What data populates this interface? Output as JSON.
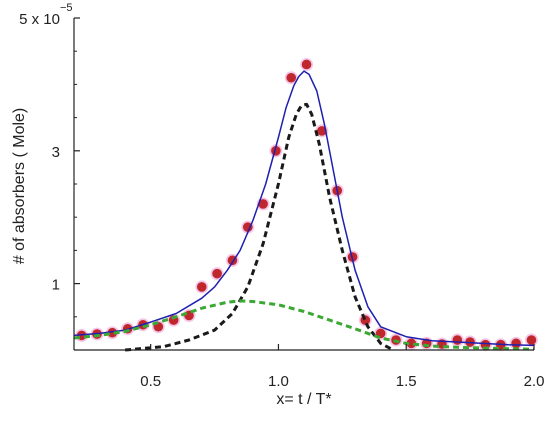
{
  "chart_data": {
    "type": "scatter",
    "xlabel": "x= t / T*",
    "ylabel": "# of absorbers ( Mole)",
    "xlim": [
      0.2,
      2.0
    ],
    "ylim": [
      0,
      5
    ],
    "x_ticks": [
      0.5,
      1.0,
      1.5,
      2.0
    ],
    "x_tick_labels": [
      "0.5",
      "1.0",
      "1.5",
      "2.0"
    ],
    "y_ticks": [
      1,
      3,
      5
    ],
    "y_tick_labels": [
      "1",
      "3",
      "5 x 10"
    ],
    "y_exponent": "−5",
    "grid": false,
    "legend": "none",
    "series": [
      {
        "kind": "scatter",
        "color": "#c0272d",
        "halo": "#f0b3e0",
        "x": [
          0.23,
          0.29,
          0.35,
          0.41,
          0.47,
          0.53,
          0.59,
          0.65,
          0.7,
          0.76,
          0.82,
          0.88,
          0.94,
          0.99,
          1.05,
          1.11,
          1.17,
          1.23,
          1.29,
          1.34,
          1.4,
          1.46,
          1.52,
          1.58,
          1.64,
          1.7,
          1.75,
          1.81,
          1.87,
          1.93,
          1.99
        ],
        "y": [
          0.22,
          0.24,
          0.26,
          0.32,
          0.38,
          0.35,
          0.45,
          0.52,
          0.95,
          1.15,
          1.35,
          1.85,
          2.2,
          3.0,
          4.1,
          4.3,
          3.3,
          2.4,
          1.4,
          0.45,
          0.25,
          0.15,
          0.1,
          0.1,
          0.09,
          0.15,
          0.12,
          0.08,
          0.08,
          0.1,
          0.15
        ]
      },
      {
        "kind": "line",
        "color": "#1f1fb0",
        "style": "solid",
        "x": [
          0.2,
          0.3,
          0.4,
          0.5,
          0.6,
          0.7,
          0.75,
          0.8,
          0.85,
          0.9,
          0.95,
          1.0,
          1.03,
          1.06,
          1.08,
          1.1,
          1.12,
          1.15,
          1.18,
          1.21,
          1.25,
          1.3,
          1.35,
          1.4,
          1.5,
          1.6,
          1.7,
          1.8,
          1.9,
          2.0
        ],
        "y": [
          0.22,
          0.25,
          0.3,
          0.42,
          0.55,
          0.78,
          0.95,
          1.2,
          1.5,
          1.95,
          2.5,
          3.2,
          3.65,
          3.98,
          4.12,
          4.2,
          4.15,
          3.9,
          3.4,
          2.8,
          2.0,
          1.2,
          0.65,
          0.35,
          0.2,
          0.14,
          0.12,
          0.1,
          0.08,
          0.07
        ]
      },
      {
        "kind": "line",
        "color": "#1a1a1a",
        "style": "dashed",
        "x": [
          0.4,
          0.55,
          0.65,
          0.75,
          0.82,
          0.88,
          0.94,
          1.0,
          1.04,
          1.07,
          1.09,
          1.11,
          1.13,
          1.16,
          1.2,
          1.25,
          1.3,
          1.35,
          1.4,
          1.45
        ],
        "y": [
          0.0,
          0.05,
          0.15,
          0.3,
          0.55,
          0.95,
          1.6,
          2.5,
          3.2,
          3.55,
          3.68,
          3.7,
          3.55,
          3.1,
          2.3,
          1.5,
          0.8,
          0.35,
          0.1,
          0.0
        ]
      },
      {
        "kind": "line",
        "color": "#3aa832",
        "style": "dashed",
        "x": [
          0.2,
          0.3,
          0.4,
          0.5,
          0.6,
          0.7,
          0.8,
          0.85,
          0.9,
          1.0,
          1.1,
          1.2,
          1.3,
          1.4,
          1.5,
          1.6,
          1.7,
          1.8,
          1.9,
          2.0
        ],
        "y": [
          0.18,
          0.22,
          0.28,
          0.38,
          0.5,
          0.63,
          0.72,
          0.74,
          0.73,
          0.68,
          0.58,
          0.45,
          0.32,
          0.18,
          0.1,
          0.06,
          0.04,
          0.03,
          0.02,
          0.01
        ]
      }
    ]
  }
}
